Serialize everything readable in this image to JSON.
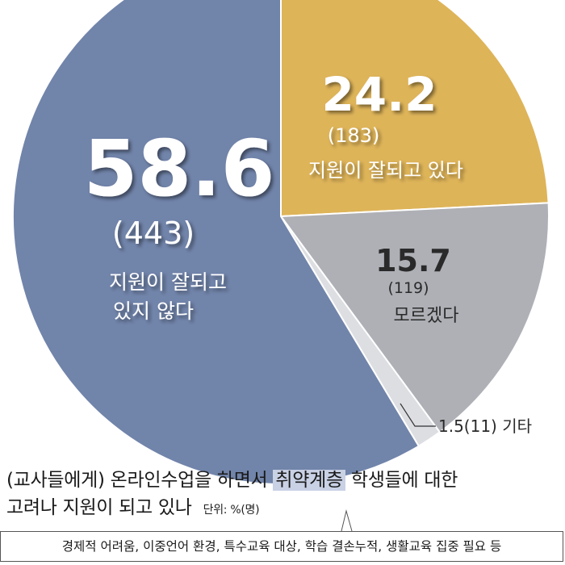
{
  "chart_data": {
    "type": "pie",
    "unit": "단위: %(명)",
    "slices": [
      {
        "value": 24.2,
        "count": "(183)",
        "label": "지원이 잘되고 있다",
        "color": "#deb459"
      },
      {
        "value": 15.7,
        "count": "(119)",
        "label": "모르겠다",
        "color": "#aeb0b6"
      },
      {
        "value": 1.5,
        "count": "(11)",
        "label": "기타",
        "color": "#dcdee2"
      },
      {
        "value": 58.6,
        "count": "(443)",
        "label_lines": [
          "지원이 잘되고",
          "있지 않다"
        ],
        "color": "#7184aa"
      }
    ]
  },
  "labels": {
    "s0_value": "24.2",
    "s0_count": "(183)",
    "s0_label": "지원이 잘되고 있다",
    "s1_value": "15.7",
    "s1_count": "(119)",
    "s1_label": "모르겠다",
    "s2_text": "1.5(11)  기타",
    "s3_value": "58.6",
    "s3_count": "(443)",
    "s3_label_1": "지원이 잘되고",
    "s3_label_2": "있지 않다"
  },
  "question": {
    "part1": "(교사들에게) 온라인수업을 하면서 ",
    "highlight": "취약계층",
    "part2": " 학생들에 대한",
    "line2": "고려나 지원이 되고 있나",
    "unit": "단위: %(명)"
  },
  "footnote": "경제적 어려움, 이중언어 환경, 특수교육 대상, 학습 결손누적, 생활교육 집중 필요 등"
}
